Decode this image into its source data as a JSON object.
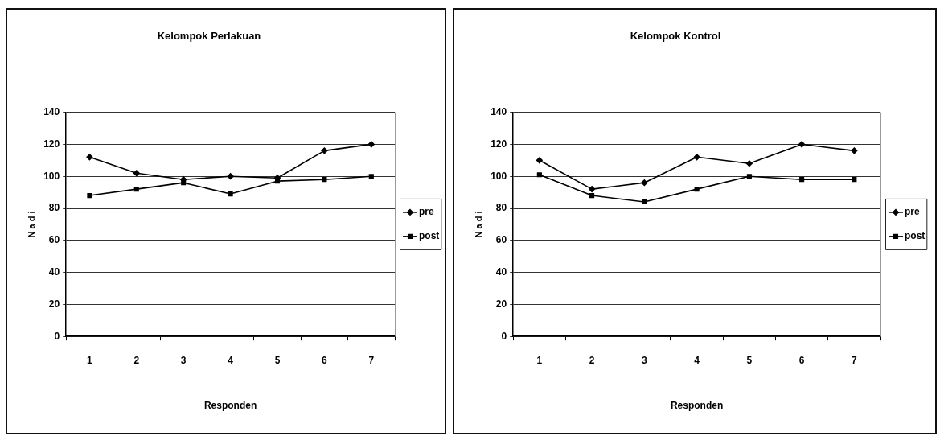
{
  "chart_data": [
    {
      "type": "line",
      "title": "Kelompok Perlakuan",
      "xlabel": "Responden",
      "ylabel": "N a d i",
      "categories": [
        "1",
        "2",
        "3",
        "4",
        "5",
        "6",
        "7"
      ],
      "series": [
        {
          "name": "pre",
          "color": "#000000",
          "marker": "diamond",
          "values": [
            112,
            102,
            98,
            100,
            99,
            116,
            120
          ]
        },
        {
          "name": "post",
          "color": "#000000",
          "marker": "square",
          "values": [
            88,
            92,
            96,
            89,
            97,
            98,
            100
          ]
        }
      ],
      "ylim": [
        0,
        140
      ],
      "yticks": [
        0,
        20,
        40,
        60,
        80,
        100,
        120,
        140
      ],
      "grid": "y",
      "legend": "right"
    },
    {
      "type": "line",
      "title": "Kelompok Kontrol",
      "xlabel": "Responden",
      "ylabel": "N a d i",
      "categories": [
        "1",
        "2",
        "3",
        "4",
        "5",
        "6",
        "7"
      ],
      "series": [
        {
          "name": "pre",
          "color": "#000000",
          "marker": "diamond",
          "values": [
            110,
            92,
            96,
            112,
            108,
            120,
            116
          ]
        },
        {
          "name": "post",
          "color": "#000000",
          "marker": "square",
          "values": [
            101,
            88,
            84,
            92,
            100,
            98,
            98
          ]
        }
      ],
      "ylim": [
        0,
        140
      ],
      "yticks": [
        0,
        20,
        40,
        60,
        80,
        100,
        120,
        140
      ],
      "grid": "y",
      "legend": "right"
    }
  ]
}
